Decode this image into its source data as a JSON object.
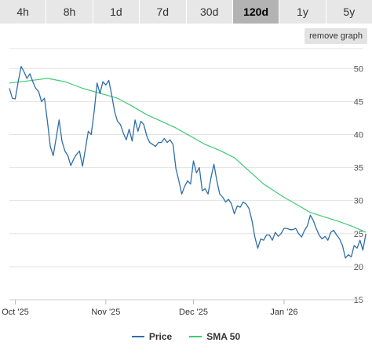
{
  "tabs": [
    {
      "label": "4h",
      "active": false
    },
    {
      "label": "8h",
      "active": false
    },
    {
      "label": "1d",
      "active": false
    },
    {
      "label": "7d",
      "active": false
    },
    {
      "label": "30d",
      "active": false
    },
    {
      "label": "120d",
      "active": true
    },
    {
      "label": "1y",
      "active": false
    },
    {
      "label": "5y",
      "active": false
    }
  ],
  "remove_graph_label": "remove graph",
  "colors": {
    "price": "#2f6ea8",
    "sma": "#3ecb74",
    "grid": "#e3e3e3"
  },
  "chart_data": {
    "type": "line",
    "ylim": [
      15,
      53
    ],
    "yticks": [
      15,
      20,
      25,
      30,
      35,
      40,
      45,
      50
    ],
    "grid": true,
    "legend_position": "bottom-center",
    "x_range": [
      "2025-09-29",
      "2026-01-26"
    ],
    "xticks": [
      {
        "date": "2025-10-01",
        "label": "Oct '25"
      },
      {
        "date": "2025-11-01",
        "label": "Nov '25"
      },
      {
        "date": "2025-12-01",
        "label": "Dec '25"
      },
      {
        "date": "2026-01-01",
        "label": "Jan '26"
      }
    ],
    "series": [
      {
        "name": "Price",
        "color": "#2f6ea8",
        "points": [
          [
            "2025-09-29",
            47.0
          ],
          [
            "2025-09-30",
            45.5
          ],
          [
            "2025-10-01",
            45.4
          ],
          [
            "2025-10-02",
            48.0
          ],
          [
            "2025-10-03",
            50.3
          ],
          [
            "2025-10-04",
            49.5
          ],
          [
            "2025-10-05",
            48.5
          ],
          [
            "2025-10-06",
            49.2
          ],
          [
            "2025-10-07",
            48.0
          ],
          [
            "2025-10-08",
            47.0
          ],
          [
            "2025-10-09",
            46.5
          ],
          [
            "2025-10-10",
            45.0
          ],
          [
            "2025-10-11",
            45.5
          ],
          [
            "2025-10-12",
            42.0
          ],
          [
            "2025-10-13",
            38.2
          ],
          [
            "2025-10-14",
            36.8
          ],
          [
            "2025-10-15",
            39.5
          ],
          [
            "2025-10-16",
            42.2
          ],
          [
            "2025-10-17",
            39.0
          ],
          [
            "2025-10-18",
            37.5
          ],
          [
            "2025-10-19",
            36.8
          ],
          [
            "2025-10-20",
            35.3
          ],
          [
            "2025-10-21",
            36.3
          ],
          [
            "2025-10-22",
            37.0
          ],
          [
            "2025-10-23",
            37.5
          ],
          [
            "2025-10-24",
            35.2
          ],
          [
            "2025-10-25",
            37.8
          ],
          [
            "2025-10-26",
            40.5
          ],
          [
            "2025-10-27",
            40.0
          ],
          [
            "2025-10-28",
            43.5
          ],
          [
            "2025-10-29",
            47.8
          ],
          [
            "2025-10-30",
            46.2
          ],
          [
            "2025-10-31",
            48.0
          ],
          [
            "2025-11-01",
            47.5
          ],
          [
            "2025-11-02",
            48.2
          ],
          [
            "2025-11-03",
            46.0
          ],
          [
            "2025-11-04",
            43.5
          ],
          [
            "2025-11-05",
            42.0
          ],
          [
            "2025-11-06",
            41.5
          ],
          [
            "2025-11-07",
            40.2
          ],
          [
            "2025-11-08",
            39.2
          ],
          [
            "2025-11-09",
            40.8
          ],
          [
            "2025-11-10",
            39.0
          ],
          [
            "2025-11-11",
            42.2
          ],
          [
            "2025-11-12",
            40.5
          ],
          [
            "2025-11-13",
            42.0
          ],
          [
            "2025-11-14",
            41.5
          ],
          [
            "2025-11-15",
            39.8
          ],
          [
            "2025-11-16",
            38.8
          ],
          [
            "2025-11-17",
            38.5
          ],
          [
            "2025-11-18",
            38.2
          ],
          [
            "2025-11-19",
            38.8
          ],
          [
            "2025-11-20",
            38.8
          ],
          [
            "2025-11-21",
            39.4
          ],
          [
            "2025-11-22",
            38.8
          ],
          [
            "2025-11-23",
            39.2
          ],
          [
            "2025-11-24",
            38.5
          ],
          [
            "2025-11-25",
            34.8
          ],
          [
            "2025-11-26",
            33.0
          ],
          [
            "2025-11-27",
            31.0
          ],
          [
            "2025-11-28",
            32.2
          ],
          [
            "2025-11-29",
            33.0
          ],
          [
            "2025-11-30",
            32.5
          ],
          [
            "2025-12-01",
            36.0
          ],
          [
            "2025-12-02",
            34.2
          ],
          [
            "2025-12-03",
            35.0
          ],
          [
            "2025-12-04",
            31.5
          ],
          [
            "2025-12-05",
            31.8
          ],
          [
            "2025-12-06",
            31.0
          ],
          [
            "2025-12-07",
            33.5
          ],
          [
            "2025-12-08",
            35.5
          ],
          [
            "2025-12-09",
            33.0
          ],
          [
            "2025-12-10",
            31.0
          ],
          [
            "2025-12-11",
            30.5
          ],
          [
            "2025-12-12",
            29.8
          ],
          [
            "2025-12-13",
            30.2
          ],
          [
            "2025-12-14",
            29.5
          ],
          [
            "2025-12-15",
            28.0
          ],
          [
            "2025-12-16",
            29.2
          ],
          [
            "2025-12-17",
            29.0
          ],
          [
            "2025-12-18",
            29.8
          ],
          [
            "2025-12-19",
            29.5
          ],
          [
            "2025-12-20",
            28.8
          ],
          [
            "2025-12-21",
            27.0
          ],
          [
            "2025-12-22",
            24.5
          ],
          [
            "2025-12-23",
            22.8
          ],
          [
            "2025-12-24",
            24.2
          ],
          [
            "2025-12-25",
            24.0
          ],
          [
            "2025-12-26",
            24.8
          ],
          [
            "2025-12-27",
            24.8
          ],
          [
            "2025-12-28",
            24.0
          ],
          [
            "2025-12-29",
            25.2
          ],
          [
            "2025-12-30",
            24.6
          ],
          [
            "2025-12-31",
            25.0
          ],
          [
            "2026-01-01",
            25.8
          ],
          [
            "2026-01-02",
            25.8
          ],
          [
            "2026-01-03",
            25.6
          ],
          [
            "2026-01-04",
            25.6
          ],
          [
            "2026-01-05",
            25.8
          ],
          [
            "2026-01-06",
            25.0
          ],
          [
            "2026-01-07",
            24.5
          ],
          [
            "2026-01-08",
            25.5
          ],
          [
            "2026-01-09",
            26.2
          ],
          [
            "2026-01-10",
            27.8
          ],
          [
            "2026-01-11",
            27.0
          ],
          [
            "2026-01-12",
            25.8
          ],
          [
            "2026-01-13",
            24.8
          ],
          [
            "2026-01-14",
            24.2
          ],
          [
            "2026-01-15",
            24.6
          ],
          [
            "2026-01-16",
            24.0
          ],
          [
            "2026-01-17",
            25.2
          ],
          [
            "2026-01-18",
            25.5
          ],
          [
            "2026-01-19",
            24.8
          ],
          [
            "2026-01-20",
            24.2
          ],
          [
            "2026-01-21",
            23.2
          ],
          [
            "2026-01-22",
            21.3
          ],
          [
            "2026-01-23",
            21.8
          ],
          [
            "2026-01-24",
            21.5
          ],
          [
            "2026-01-25",
            23.2
          ],
          [
            "2026-01-26",
            22.8
          ],
          [
            "2026-01-27",
            24.0
          ],
          [
            "2026-01-28",
            22.5
          ],
          [
            "2026-01-29",
            25.0
          ]
        ]
      },
      {
        "name": "SMA 50",
        "color": "#3ecb74",
        "points": [
          [
            "2025-09-29",
            47.8
          ],
          [
            "2025-10-05",
            48.1
          ],
          [
            "2025-10-12",
            48.5
          ],
          [
            "2025-10-18",
            48.0
          ],
          [
            "2025-10-24",
            47.0
          ],
          [
            "2025-11-01",
            46.0
          ],
          [
            "2025-11-05",
            45.5
          ],
          [
            "2025-11-10",
            44.3
          ],
          [
            "2025-11-15",
            43.0
          ],
          [
            "2025-11-20",
            42.0
          ],
          [
            "2025-11-25",
            41.0
          ],
          [
            "2025-12-01",
            39.5
          ],
          [
            "2025-12-05",
            38.5
          ],
          [
            "2025-12-10",
            37.6
          ],
          [
            "2025-12-15",
            36.5
          ],
          [
            "2025-12-20",
            34.5
          ],
          [
            "2025-12-25",
            32.5
          ],
          [
            "2026-01-01",
            30.5
          ],
          [
            "2026-01-05",
            29.5
          ],
          [
            "2026-01-10",
            28.2
          ],
          [
            "2026-01-15",
            27.5
          ],
          [
            "2026-01-20",
            26.8
          ],
          [
            "2026-01-25",
            26.0
          ],
          [
            "2026-01-29",
            25.2
          ]
        ]
      }
    ]
  }
}
